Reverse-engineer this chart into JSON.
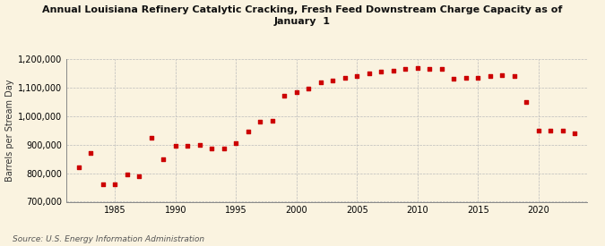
{
  "title": "Annual Louisiana Refinery Catalytic Cracking, Fresh Feed Downstream Charge Capacity as of\nJanuary  1",
  "ylabel": "Barrels per Stream Day",
  "source": "Source: U.S. Energy Information Administration",
  "background_color": "#faf3e0",
  "marker_color": "#cc0000",
  "grid_color": "#bbbbbb",
  "years": [
    1982,
    1983,
    1984,
    1985,
    1986,
    1987,
    1988,
    1989,
    1990,
    1991,
    1992,
    1993,
    1994,
    1995,
    1996,
    1997,
    1998,
    1999,
    2000,
    2001,
    2002,
    2003,
    2004,
    2005,
    2006,
    2007,
    2008,
    2009,
    2010,
    2011,
    2012,
    2013,
    2014,
    2015,
    2016,
    2017,
    2018,
    2019,
    2020,
    2021,
    2022,
    2023
  ],
  "values": [
    820000,
    870000,
    760000,
    760000,
    795000,
    790000,
    925000,
    850000,
    895000,
    895000,
    900000,
    885000,
    885000,
    905000,
    945000,
    980000,
    985000,
    1070000,
    1085000,
    1095000,
    1120000,
    1125000,
    1135000,
    1140000,
    1150000,
    1155000,
    1160000,
    1165000,
    1170000,
    1165000,
    1165000,
    1130000,
    1135000,
    1135000,
    1140000,
    1145000,
    1140000,
    1050000,
    950000,
    950000,
    950000,
    940000
  ],
  "ylim": [
    700000,
    1200000
  ],
  "ytick_step": 100000,
  "xlim": [
    1981,
    2024
  ],
  "xticks": [
    1985,
    1990,
    1995,
    2000,
    2005,
    2010,
    2015,
    2020
  ]
}
